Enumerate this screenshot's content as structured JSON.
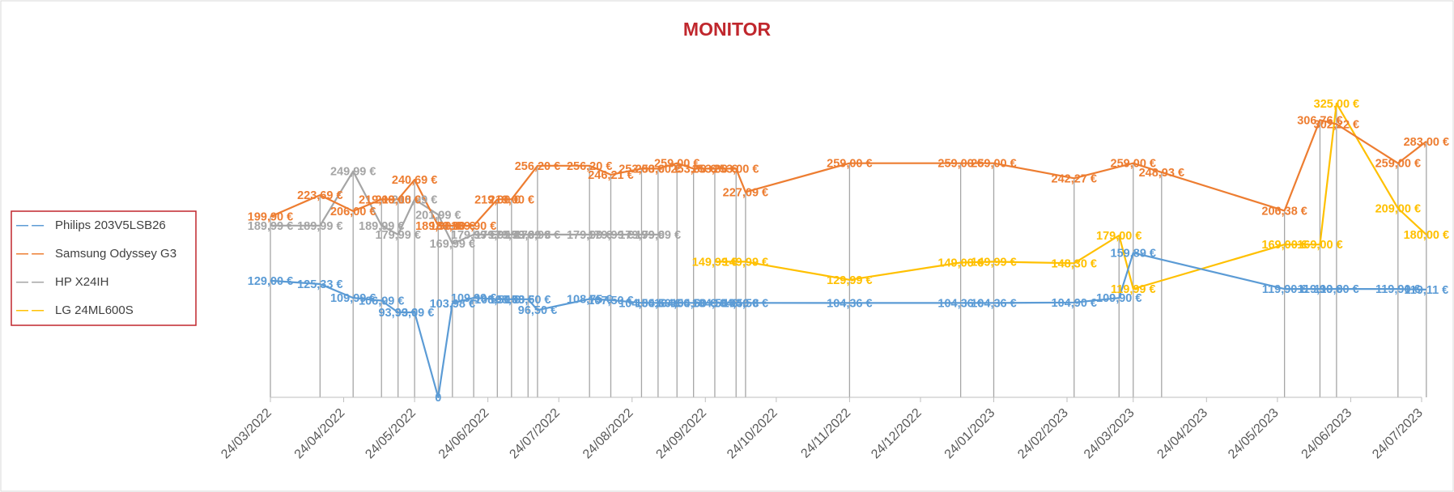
{
  "chart_data": {
    "type": "line",
    "title": "MONITOR",
    "xlabel": "",
    "ylabel": "",
    "ylim": [
      0,
      350
    ],
    "x_ticks": [
      "24/03/2022",
      "24/04/2022",
      "24/05/2022",
      "24/06/2022",
      "24/07/2022",
      "24/08/2022",
      "24/09/2022",
      "24/10/2022",
      "24/11/2022",
      "24/12/2022",
      "24/01/2023",
      "24/02/2023",
      "24/03/2023",
      "24/04/2023",
      "24/05/2023",
      "24/06/2023",
      "24/07/2023"
    ],
    "x_dates": [
      "2022-03-24",
      "2022-04-14",
      "2022-04-28",
      "2022-05-10",
      "2022-05-17",
      "2022-05-24",
      "2022-06-03",
      "2022-06-09",
      "2022-06-18",
      "2022-06-28",
      "2022-07-04",
      "2022-07-11",
      "2022-07-15",
      "2022-08-06",
      "2022-08-15",
      "2022-08-28",
      "2022-09-04",
      "2022-09-12",
      "2022-09-19",
      "2022-09-28",
      "2022-10-07",
      "2022-10-11",
      "2022-11-24",
      "2023-01-10",
      "2023-01-24",
      "2023-02-27",
      "2023-03-18",
      "2023-03-24",
      "2023-04-05",
      "2023-05-27",
      "2023-06-11",
      "2023-06-18",
      "2023-07-14",
      "2023-07-26"
    ],
    "grid": false,
    "legend_position": "left",
    "legend_dash": "— —",
    "series": [
      {
        "name": "Philips  203V5LSB26",
        "color": "#5B9BD5",
        "points": [
          {
            "x": "2022-03-24",
            "y": 129.0,
            "label": "129,00 €"
          },
          {
            "x": "2022-04-14",
            "y": 125.33,
            "label": "125,33 €"
          },
          {
            "x": "2022-04-28",
            "y": 109.99,
            "label": "109,99 €"
          },
          {
            "x": "2022-05-10",
            "y": 106.99,
            "label": "106,99 €"
          },
          {
            "x": "2022-05-17",
            "y": 93.99,
            "label": "93,99 €"
          },
          {
            "x": "2022-05-24",
            "y": 93.99,
            "label": "93,99 €"
          },
          {
            "x": "2022-06-03",
            "y": 0,
            "label": "0"
          },
          {
            "x": "2022-06-09",
            "y": 103.98,
            "label": "103,98 €"
          },
          {
            "x": "2022-06-18",
            "y": 109.99,
            "label": "109,99 €"
          },
          {
            "x": "2022-06-28",
            "y": 108.5,
            "label": "108,50 €"
          },
          {
            "x": "2022-07-04",
            "y": 108.5,
            "label": "108,50 €"
          },
          {
            "x": "2022-07-11",
            "y": 108.5,
            "label": "108,50 €"
          },
          {
            "x": "2022-07-15",
            "y": 96.5,
            "label": "96,50 €"
          },
          {
            "x": "2022-08-06",
            "y": 108.75,
            "label": "108,75 €"
          },
          {
            "x": "2022-08-15",
            "y": 107.5,
            "label": "107,50 €"
          },
          {
            "x": "2022-08-28",
            "y": 104.5,
            "label": "104,50 €"
          },
          {
            "x": "2022-09-04",
            "y": 104.5,
            "label": "104,50 €"
          },
          {
            "x": "2022-09-12",
            "y": 104.5,
            "label": "104,50 €"
          },
          {
            "x": "2022-09-19",
            "y": 104.5,
            "label": "104,50 €"
          },
          {
            "x": "2022-09-28",
            "y": 104.5,
            "label": "104,50 €"
          },
          {
            "x": "2022-10-07",
            "y": 104.5,
            "label": "104,50 €"
          },
          {
            "x": "2022-10-11",
            "y": 104.5,
            "label": "104,50 €"
          },
          {
            "x": "2022-11-24",
            "y": 104.36,
            "label": "104,36 €"
          },
          {
            "x": "2023-01-10",
            "y": 104.36,
            "label": "104,36 €"
          },
          {
            "x": "2023-01-24",
            "y": 104.36,
            "label": "104,36 €"
          },
          {
            "x": "2023-02-27",
            "y": 104.9,
            "label": "104,90 €"
          },
          {
            "x": "2023-03-18",
            "y": 109.9,
            "label": "109,90 €"
          },
          {
            "x": "2023-03-24",
            "y": 159.89,
            "label": "159,89 €"
          },
          {
            "x": "2023-05-27",
            "y": 119.9,
            "label": "119,90 €"
          },
          {
            "x": "2023-06-11",
            "y": 119.9,
            "label": "119,90 €"
          },
          {
            "x": "2023-06-18",
            "y": 119.9,
            "label": "119,90 €"
          },
          {
            "x": "2023-07-14",
            "y": 119.9,
            "label": "119,90 €"
          },
          {
            "x": "2023-07-26",
            "y": 119.11,
            "label": "119,11 €"
          }
        ]
      },
      {
        "name": "Samsung  Odyssey G3",
        "color": "#ED7D31",
        "points": [
          {
            "x": "2022-03-24",
            "y": 199.9,
            "label": "199,90 €"
          },
          {
            "x": "2022-04-14",
            "y": 223.69,
            "label": "223,69 €"
          },
          {
            "x": "2022-04-28",
            "y": 206.0,
            "label": "206,00 €"
          },
          {
            "x": "2022-05-10",
            "y": 219.0,
            "label": "219,00 €"
          },
          {
            "x": "2022-05-17",
            "y": 219.0,
            "label": "219,00 €"
          },
          {
            "x": "2022-05-24",
            "y": 240.69,
            "label": "240,69 €"
          },
          {
            "x": "2022-06-03",
            "y": 189.9,
            "label": "189,90 €"
          },
          {
            "x": "2022-06-09",
            "y": 189.9,
            "label": "189,90 €"
          },
          {
            "x": "2022-06-18",
            "y": 189.9,
            "label": "189,90 €"
          },
          {
            "x": "2022-06-28",
            "y": 219.0,
            "label": "219,00 €"
          },
          {
            "x": "2022-07-04",
            "y": 219.0,
            "label": "219,00 €"
          },
          {
            "x": "2022-07-15",
            "y": 256.2,
            "label": "256,20 €"
          },
          {
            "x": "2022-08-06",
            "y": 256.2,
            "label": "256,20 €"
          },
          {
            "x": "2022-08-15",
            "y": 246.21,
            "label": "246,21 €"
          },
          {
            "x": "2022-08-28",
            "y": 253.0,
            "label": "253,00 €"
          },
          {
            "x": "2022-09-04",
            "y": 253.0,
            "label": "253,00 €"
          },
          {
            "x": "2022-09-12",
            "y": 259.0,
            "label": "259,00 €"
          },
          {
            "x": "2022-09-19",
            "y": 253.0,
            "label": "253,00 €"
          },
          {
            "x": "2022-09-28",
            "y": 253.0,
            "label": "253,00 €"
          },
          {
            "x": "2022-10-07",
            "y": 253.0,
            "label": "253,00 €"
          },
          {
            "x": "2022-10-11",
            "y": 227.09,
            "label": "227,09 €"
          },
          {
            "x": "2022-11-24",
            "y": 259.0,
            "label": "259,00 €"
          },
          {
            "x": "2023-01-10",
            "y": 259.0,
            "label": "259,00 €"
          },
          {
            "x": "2023-01-24",
            "y": 259.0,
            "label": "259,00 €"
          },
          {
            "x": "2023-02-27",
            "y": 242.27,
            "label": "242,27 €"
          },
          {
            "x": "2023-03-24",
            "y": 259.0,
            "label": "259,00 €"
          },
          {
            "x": "2023-04-05",
            "y": 248.93,
            "label": "248,93 €"
          },
          {
            "x": "2023-05-27",
            "y": 206.38,
            "label": "206,38 €"
          },
          {
            "x": "2023-06-11",
            "y": 306.76,
            "label": "306,76 €"
          },
          {
            "x": "2023-06-18",
            "y": 302.22,
            "label": "302,22 €"
          },
          {
            "x": "2023-07-14",
            "y": 259.0,
            "label": "259,00 €"
          },
          {
            "x": "2023-07-26",
            "y": 283.0,
            "label": "283,00 €"
          }
        ]
      },
      {
        "name": "HP X24IH",
        "color": "#A5A5A5",
        "points": [
          {
            "x": "2022-03-24",
            "y": 189.99,
            "label": "189,99 €"
          },
          {
            "x": "2022-04-14",
            "y": 189.99,
            "label": "189,99 €"
          },
          {
            "x": "2022-04-28",
            "y": 249.99,
            "label": "249,99 €"
          },
          {
            "x": "2022-05-10",
            "y": 189.99,
            "label": "189,99 €"
          },
          {
            "x": "2022-05-17",
            "y": 179.99,
            "label": "179,99 €"
          },
          {
            "x": "2022-05-24",
            "y": 218.99,
            "label": "218,99 €"
          },
          {
            "x": "2022-06-03",
            "y": 201.99,
            "label": "201,99 €"
          },
          {
            "x": "2022-06-09",
            "y": 169.99,
            "label": "169,99 €"
          },
          {
            "x": "2022-06-18",
            "y": 179.99,
            "label": "179,99 €"
          },
          {
            "x": "2022-06-28",
            "y": 179.99,
            "label": "179,99 €"
          },
          {
            "x": "2022-07-04",
            "y": 179.99,
            "label": "179,99 €"
          },
          {
            "x": "2022-07-11",
            "y": 179.99,
            "label": "179,99 €"
          },
          {
            "x": "2022-07-15",
            "y": 179.99,
            "label": "179,99 €"
          },
          {
            "x": "2022-08-06",
            "y": 179.99,
            "label": "179,99 €"
          },
          {
            "x": "2022-08-15",
            "y": 179.99,
            "label": "179,99 €"
          },
          {
            "x": "2022-08-28",
            "y": 179.99,
            "label": "179,99 €"
          },
          {
            "x": "2022-09-04",
            "y": 179.99,
            "label": "179,99 €"
          }
        ]
      },
      {
        "name": "LG 24ML600S",
        "color": "#FFC000",
        "points": [
          {
            "x": "2022-09-28",
            "y": 149.99,
            "label": "149,99 €"
          },
          {
            "x": "2022-10-11",
            "y": 149.99,
            "label": "149,99 €"
          },
          {
            "x": "2022-11-24",
            "y": 129.99,
            "label": "129,99 €"
          },
          {
            "x": "2023-01-10",
            "y": 149.0,
            "label": "149,00 €"
          },
          {
            "x": "2023-01-24",
            "y": 149.99,
            "label": "149,99 €"
          },
          {
            "x": "2023-02-27",
            "y": 148.3,
            "label": "148,30 €"
          },
          {
            "x": "2023-03-18",
            "y": 179.0,
            "label": "179,00 €"
          },
          {
            "x": "2023-03-24",
            "y": 119.99,
            "label": "119,99 €"
          },
          {
            "x": "2023-05-27",
            "y": 169.0,
            "label": "169,00 €"
          },
          {
            "x": "2023-06-11",
            "y": 169.0,
            "label": "169,00 €"
          },
          {
            "x": "2023-06-18",
            "y": 325.0,
            "label": "325,00 €"
          },
          {
            "x": "2023-07-14",
            "y": 209.0,
            "label": "209,00 €"
          },
          {
            "x": "2023-07-26",
            "y": 180.0,
            "label": "180,00 €"
          }
        ]
      }
    ]
  }
}
